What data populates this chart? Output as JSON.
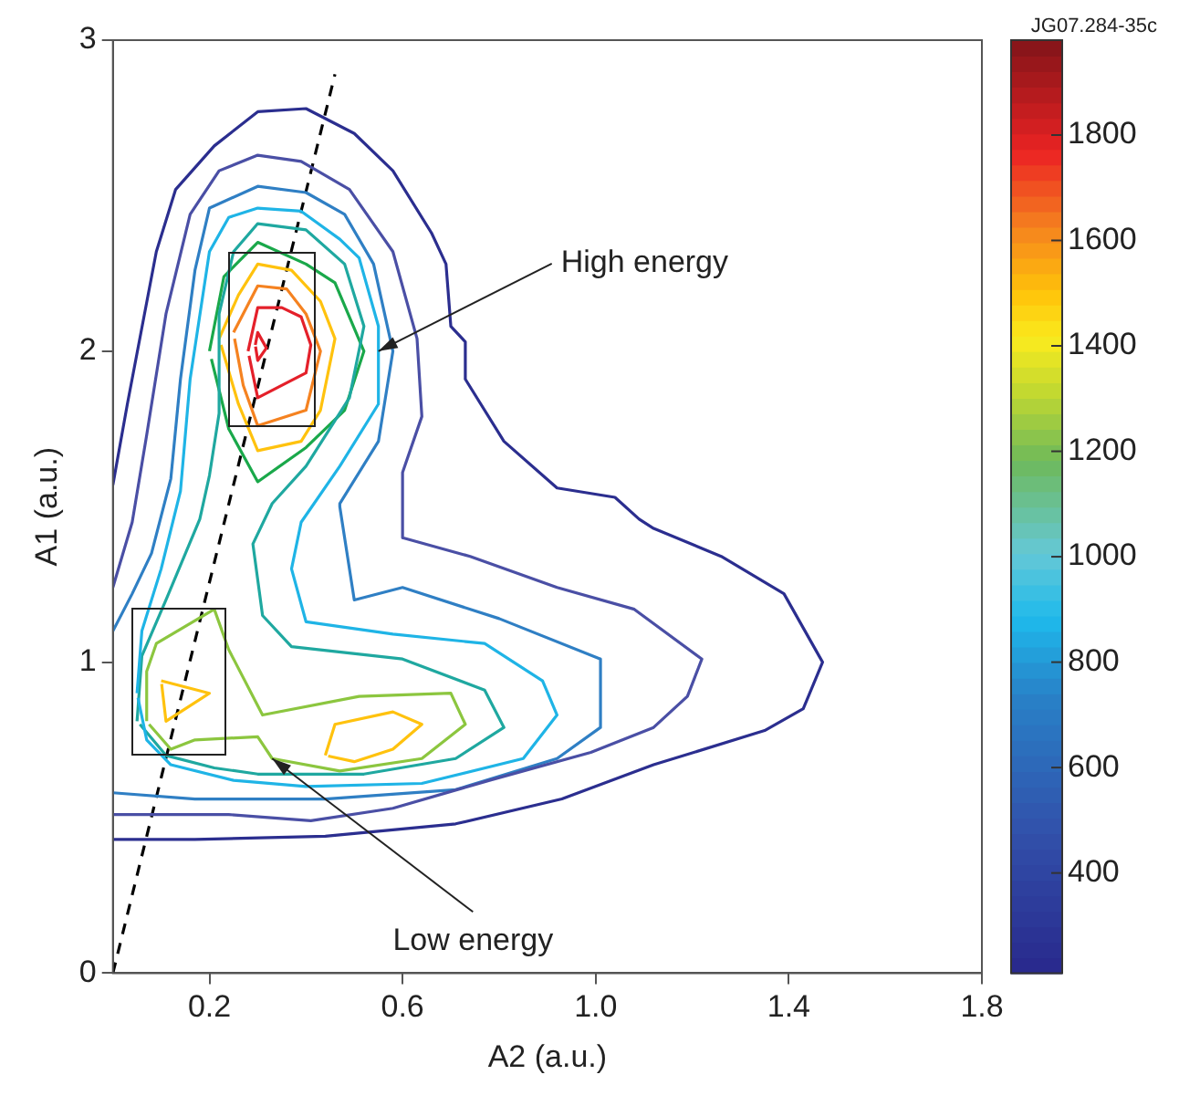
{
  "chart_data": {
    "type": "line",
    "xlabel": "A2 (a.u.)",
    "ylabel": "A1 (a.u.)",
    "xlim": [
      0,
      1.8
    ],
    "xticks": [
      0.2,
      0.6,
      {
        "value": 1,
        "label": "1.0"
      },
      1.4,
      1.8
    ],
    "ylim": [
      0,
      3
    ],
    "yticks": [
      0,
      1,
      2,
      3
    ],
    "clim": [
      210,
      1980
    ],
    "cticks": [
      400,
      600,
      800,
      1000,
      1200,
      1400,
      1600,
      1800
    ],
    "annotations": [
      "JG07.284-35c",
      {
        "text": "High energy",
        "x": 0.55,
        "y": 2.0
      },
      {
        "text": "Low energy",
        "x": 0.33,
        "y": 0.69
      }
    ],
    "series": [
      {
        "color": "#2b2e8f",
        "x": [
          0,
          0.03,
          0.09,
          0.13,
          0.21,
          0.3,
          0.4,
          0.5,
          0.58,
          0.66,
          0.69,
          0.7,
          0.73,
          0.73,
          0.81,
          0.92,
          1.04,
          1.09,
          1.12,
          1.26,
          1.39,
          1.47,
          1.43,
          1.35,
          1.12,
          0.93,
          0.71,
          0.44,
          0.17,
          0
        ],
        "values": [
          1.57,
          1.83,
          2.32,
          2.52,
          2.66,
          2.77,
          2.78,
          2.7,
          2.58,
          2.38,
          2.28,
          2.08,
          2.03,
          1.91,
          1.71,
          1.56,
          1.53,
          1.46,
          1.43,
          1.34,
          1.22,
          1.0,
          0.85,
          0.78,
          0.67,
          0.56,
          0.48,
          0.44,
          0.43,
          0.43
        ]
      },
      {
        "color": "#4a4fa5",
        "x": [
          0,
          0.04,
          0.07,
          0.11,
          0.16,
          0.22,
          0.3,
          0.39,
          0.49,
          0.58,
          0.63,
          0.64,
          0.6,
          0.6,
          0.74,
          0.92,
          1.08,
          1.22,
          1.19,
          1.12,
          0.99,
          0.78,
          0.58,
          0.41,
          0.24,
          0
        ],
        "values": [
          1.24,
          1.45,
          1.73,
          2.12,
          2.44,
          2.58,
          2.63,
          2.61,
          2.52,
          2.32,
          2.04,
          1.79,
          1.61,
          1.4,
          1.34,
          1.24,
          1.17,
          1.01,
          0.89,
          0.79,
          0.71,
          0.62,
          0.53,
          0.49,
          0.51,
          0.51
        ]
      },
      {
        "color": "#2f7fc4",
        "x": [
          0,
          0.04,
          0.08,
          0.12,
          0.14,
          0.17,
          0.2,
          0.3,
          0.4,
          0.48,
          0.54,
          0.58,
          0.55,
          0.47,
          0.47,
          0.5,
          0.6,
          0.8,
          1.01,
          1.01,
          0.92,
          0.71,
          0.44,
          0.17,
          0
        ],
        "values": [
          1.1,
          1.22,
          1.35,
          1.59,
          1.91,
          2.26,
          2.46,
          2.53,
          2.51,
          2.44,
          2.28,
          2.0,
          1.71,
          1.51,
          1.5,
          1.2,
          1.24,
          1.14,
          1.01,
          0.79,
          0.69,
          0.59,
          0.56,
          0.56,
          0.58
        ]
      },
      {
        "color": "#1fb4e6",
        "x": [
          0.05,
          0.06,
          0.1,
          0.14,
          0.16,
          0.2,
          0.24,
          0.3,
          0.39,
          0.47,
          0.51,
          0.55,
          0.55,
          0.47,
          0.39,
          0.37,
          0.4,
          0.58,
          0.77,
          0.89,
          0.92,
          0.85,
          0.64,
          0.4,
          0.25,
          0.12,
          0.07,
          0.052
        ],
        "values": [
          0.9,
          1.1,
          1.3,
          1.55,
          1.91,
          2.32,
          2.43,
          2.46,
          2.45,
          2.36,
          2.3,
          2.08,
          1.83,
          1.63,
          1.45,
          1.3,
          1.13,
          1.09,
          1.06,
          0.94,
          0.83,
          0.69,
          0.61,
          0.6,
          0.62,
          0.67,
          0.75,
          0.885
        ]
      },
      {
        "color": "#1fa8a0",
        "x": [
          0.05,
          0.06,
          0.11,
          0.18,
          0.2,
          0.22,
          0.22,
          0.25,
          0.3,
          0.4,
          0.48,
          0.52,
          0.49,
          0.4,
          0.33,
          0.29,
          0.31,
          0.37,
          0.6,
          0.77,
          0.81,
          0.71,
          0.52,
          0.3,
          0.21,
          0.11,
          0.056
        ],
        "values": [
          0.81,
          1.02,
          1.2,
          1.46,
          1.6,
          1.8,
          2.12,
          2.32,
          2.41,
          2.39,
          2.28,
          2.08,
          1.85,
          1.63,
          1.51,
          1.38,
          1.15,
          1.05,
          1.01,
          0.91,
          0.79,
          0.69,
          0.64,
          0.64,
          0.66,
          0.7,
          0.8
        ]
      },
      {
        "color": "#1aa84a",
        "x": [
          0.2,
          0.23,
          0.3,
          0.4,
          0.46,
          0.52,
          0.48,
          0.4,
          0.3,
          0.24,
          0.204
        ],
        "values": [
          2.0,
          2.24,
          2.35,
          2.28,
          2.22,
          2.0,
          1.81,
          1.69,
          1.58,
          1.75,
          1.975
        ]
      },
      {
        "color": "#8cc63f",
        "x": [
          0.07,
          0.07,
          0.09,
          0.21,
          0.24,
          0.31,
          0.51,
          0.7,
          0.73,
          0.64,
          0.47,
          0.33,
          0.3,
          0.17,
          0.12,
          0.075
        ],
        "values": [
          0.81,
          0.97,
          1.06,
          1.17,
          1.04,
          0.83,
          0.89,
          0.9,
          0.8,
          0.69,
          0.65,
          0.69,
          0.76,
          0.75,
          0.72,
          0.8
        ]
      },
      {
        "color": "#ffc20e",
        "x": [
          0.22,
          0.26,
          0.3,
          0.37,
          0.43,
          0.46,
          0.43,
          0.39,
          0.3,
          0.26,
          0.224
        ],
        "values": [
          2.04,
          2.18,
          2.28,
          2.26,
          2.16,
          2.04,
          1.81,
          1.71,
          1.68,
          1.83,
          2.02
        ]
      },
      {
        "color": "#ffc20e",
        "x": [
          0.1,
          0.2,
          0.11,
          0.101
        ],
        "values": [
          0.94,
          0.9,
          0.81,
          0.93
        ]
      },
      {
        "color": "#ffc20e",
        "x": [
          0.44,
          0.46,
          0.58,
          0.64,
          0.58,
          0.5,
          0.446
        ],
        "values": [
          0.7,
          0.8,
          0.84,
          0.8,
          0.72,
          0.68,
          0.698
        ]
      },
      {
        "color": "#f58220",
        "x": [
          0.25,
          0.3,
          0.36,
          0.4,
          0.43,
          0.4,
          0.3,
          0.27,
          0.252
        ],
        "values": [
          2.06,
          2.21,
          2.2,
          2.12,
          2.0,
          1.81,
          1.76,
          1.89,
          2.04
        ]
      },
      {
        "color": "#e4202a",
        "x": [
          0.28,
          0.3,
          0.35,
          0.39,
          0.41,
          0.4,
          0.3,
          0.282
        ],
        "values": [
          2.0,
          2.14,
          2.14,
          2.11,
          2.02,
          1.93,
          1.85,
          1.985
        ]
      },
      {
        "color": "#e4202a",
        "x": [
          0.295,
          0.3,
          0.318,
          0.3,
          0.2955
        ],
        "values": [
          2.02,
          2.06,
          2.01,
          1.97,
          2.015
        ]
      },
      {
        "color": "#000000",
        "line_style": "dashed",
        "x": [
          0,
          0.46
        ],
        "values": [
          0,
          2.89
        ]
      }
    ]
  }
}
